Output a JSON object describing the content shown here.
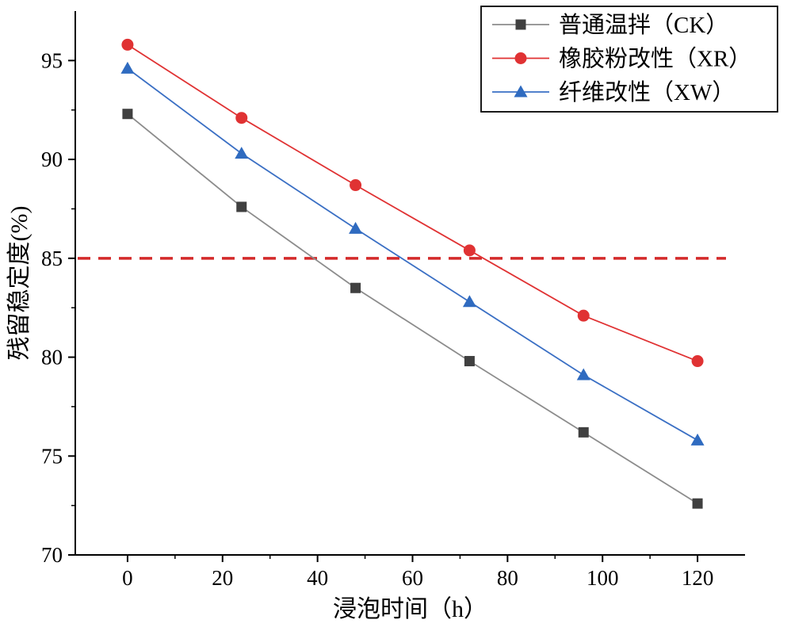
{
  "chart_data": {
    "type": "line",
    "title": "",
    "xlabel": "浸泡时间（h）",
    "ylabel": "残留稳定度(%)",
    "x": [
      0,
      24,
      48,
      72,
      96,
      120
    ],
    "series": [
      {
        "name": "普通温拌（CK）",
        "marker": "square",
        "marker_color": "#404040",
        "line_color": "#8c8c8c",
        "values": [
          92.3,
          87.6,
          83.5,
          79.8,
          76.2,
          72.6
        ]
      },
      {
        "name": "橡胶粉改性（XR）",
        "marker": "circle",
        "marker_color": "#e03233",
        "line_color": "#e03233",
        "values": [
          95.8,
          92.1,
          88.7,
          85.4,
          82.1,
          79.8
        ]
      },
      {
        "name": "纤维改性（XW）",
        "marker": "triangle",
        "marker_color": "#2f6bc0",
        "line_color": "#3a6fc4",
        "values": [
          94.6,
          90.3,
          86.5,
          82.8,
          79.1,
          75.8
        ]
      }
    ],
    "reference_line": {
      "y": 85,
      "color": "#d42a2a",
      "style": "dashed"
    },
    "xlim": [
      -11,
      130
    ],
    "ylim": [
      70,
      97.5
    ],
    "xticks": [
      0,
      20,
      40,
      60,
      80,
      100,
      120
    ],
    "yticks": [
      70,
      75,
      80,
      85,
      90,
      95
    ],
    "x_minor_step": 10,
    "y_minor_step": 2.5,
    "grid": false,
    "legend_position": "top-right",
    "axis_color": "#000000"
  }
}
